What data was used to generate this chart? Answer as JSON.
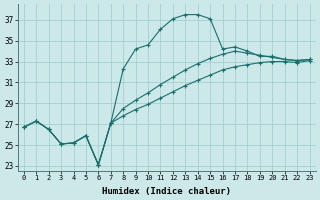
{
  "xlabel": "Humidex (Indice chaleur)",
  "bg_color": "#cce8e8",
  "grid_color": "#99cccc",
  "line_color": "#1a6e6e",
  "xlim": [
    -0.5,
    23.5
  ],
  "ylim": [
    22.5,
    38.5
  ],
  "xtick_labels": [
    "0",
    "1",
    "2",
    "3",
    "4",
    "5",
    "6",
    "7",
    "8",
    "9",
    "10",
    "11",
    "12",
    "13",
    "14",
    "15",
    "16",
    "17",
    "18",
    "19",
    "20",
    "21",
    "22",
    "23"
  ],
  "ytick_values": [
    23,
    25,
    27,
    29,
    31,
    33,
    35,
    37
  ],
  "series": [
    {
      "x": [
        0,
        1,
        2,
        3,
        4,
        5,
        6,
        7,
        8,
        9,
        10,
        11,
        12,
        13,
        14,
        15,
        16,
        17,
        18,
        19,
        20,
        21,
        22,
        23
      ],
      "y": [
        26.7,
        27.3,
        26.5,
        25.1,
        25.2,
        25.9,
        23.1,
        27.1,
        32.3,
        34.2,
        34.6,
        36.1,
        37.1,
        37.5,
        37.5,
        37.1,
        34.2,
        34.4,
        34.0,
        33.5,
        33.5,
        33.2,
        33.1,
        33.2
      ]
    },
    {
      "x": [
        0,
        1,
        2,
        3,
        4,
        5,
        6,
        7,
        8,
        9,
        10,
        11,
        12,
        13,
        14,
        15,
        16,
        17,
        18,
        19,
        20,
        21,
        22,
        23
      ],
      "y": [
        26.7,
        27.3,
        26.5,
        25.1,
        25.2,
        25.9,
        23.1,
        27.1,
        28.5,
        29.3,
        30.0,
        30.8,
        31.5,
        32.2,
        32.8,
        33.3,
        33.7,
        34.0,
        33.8,
        33.6,
        33.4,
        33.2,
        33.1,
        33.2
      ]
    },
    {
      "x": [
        0,
        1,
        2,
        3,
        4,
        5,
        6,
        7,
        8,
        9,
        10,
        11,
        12,
        13,
        14,
        15,
        16,
        17,
        18,
        19,
        20,
        21,
        22,
        23
      ],
      "y": [
        26.7,
        27.3,
        26.5,
        25.1,
        25.2,
        25.9,
        23.1,
        27.1,
        27.8,
        28.4,
        28.9,
        29.5,
        30.1,
        30.7,
        31.2,
        31.7,
        32.2,
        32.5,
        32.7,
        32.9,
        33.0,
        33.0,
        32.9,
        33.1
      ]
    }
  ]
}
